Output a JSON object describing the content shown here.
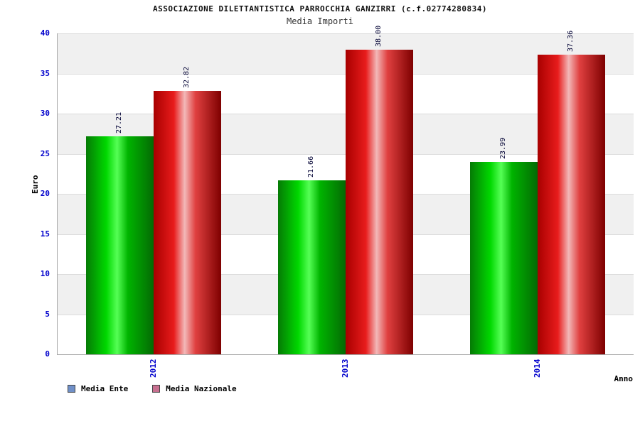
{
  "header": {
    "title1": "ASSOCIAZIONE DILETTANTISTICA PARROCCHIA GANZIRRI (c.f.02774280834)",
    "title2": "Media Importi"
  },
  "chart_data": {
    "type": "bar",
    "title": "Media Importi",
    "categories": [
      "2012",
      "2013",
      "2014"
    ],
    "series": [
      {
        "name": "Media Ente",
        "values": [
          27.21,
          21.66,
          23.99
        ],
        "labels": [
          "27.21",
          "21.66",
          "23.99"
        ],
        "bar_gradient": [
          "#057a05",
          "#00d800",
          "#55ff55",
          "#00b400",
          "#046a04"
        ],
        "legend_color": "#7090c8"
      },
      {
        "name": "Media Nazionale",
        "values": [
          32.82,
          38.0,
          37.36
        ],
        "labels": [
          "32.82",
          "38.00",
          "37.36"
        ],
        "bar_gradient": [
          "#a80000",
          "#e81c1c",
          "#f2b8b8",
          "#e04040",
          "#7e0000"
        ],
        "legend_color": "#c87090"
      }
    ],
    "xlabel": "Anno",
    "ylabel": "Euro",
    "ylim": [
      0,
      40
    ],
    "ytick_step": 5,
    "grid": "horizontal",
    "legend_position": "bottom-left"
  },
  "colors": {
    "tick_label": "#0000cc",
    "value_label": "#000033",
    "grid_line": "#dcdcdc",
    "band": "#f0f0f0",
    "axis_line": "#a8a8a8",
    "background": "#ffffff"
  }
}
